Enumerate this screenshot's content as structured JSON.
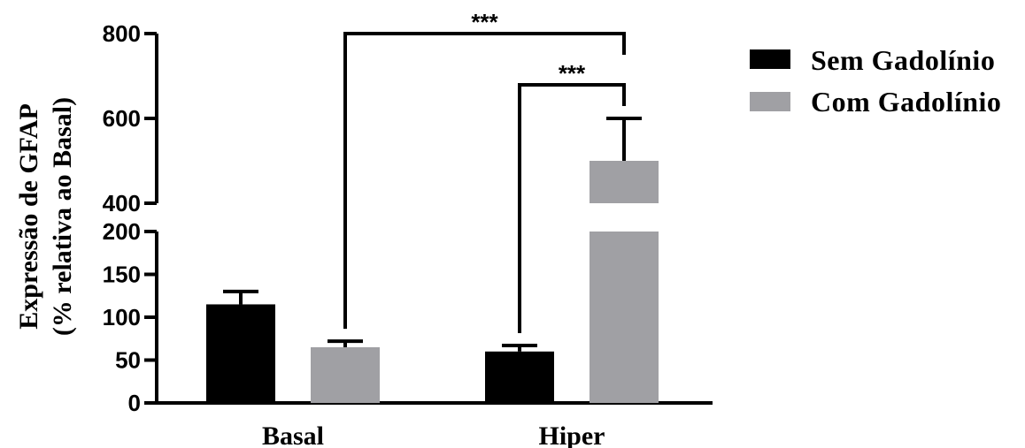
{
  "chart_data": {
    "type": "bar",
    "ylabel_line1": "Expressão de GFAP",
    "ylabel_line2": "(% relativa ao Basal)",
    "categories": [
      "Basal",
      "Hiper"
    ],
    "series": [
      {
        "name": "Sem Gadolínio",
        "color": "#000000",
        "values": [
          115,
          60
        ],
        "errors": [
          15,
          7
        ]
      },
      {
        "name": "Com Gadolínio",
        "color": "#a0a0a4",
        "values": [
          65,
          500
        ],
        "errors": [
          7,
          100
        ]
      }
    ],
    "y_ticks_lower": [
      0,
      50,
      100,
      150,
      200
    ],
    "y_ticks_upper": [
      400,
      600,
      800
    ],
    "y_break": [
      200,
      400
    ],
    "ylim": [
      0,
      800
    ],
    "legend_position": "top-right",
    "annotations": [
      {
        "text": "***",
        "from": "Basal / Com Gadolínio",
        "to": "Hiper / Com Gadolínio"
      },
      {
        "text": "***",
        "from": "Hiper / Sem Gadolínio",
        "to": "Hiper / Com Gadolínio"
      }
    ]
  }
}
